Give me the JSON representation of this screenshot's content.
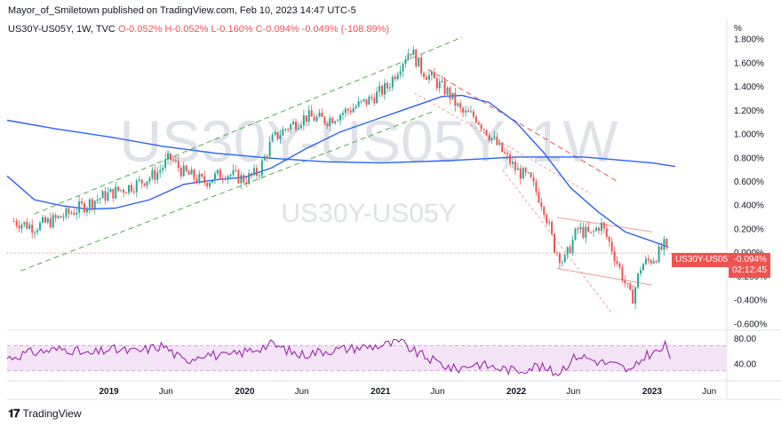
{
  "header": {
    "published_by": "Mayor_of_Smiletown published on TradingView.com, Feb 10, 2023 14:47 UTC-5"
  },
  "legend": {
    "symbol": "US30Y-US05Y, 1W, TVC",
    "open": "O-0.052%",
    "high": "H-0.052%",
    "low": "L-0.160%",
    "close": "C-0.094%",
    "change": "-0.049% (-108.89%)"
  },
  "watermark": {
    "big": "US30Y-US05Y, 1W",
    "small": "US30Y-US05Y"
  },
  "price_label": {
    "symbol": "US30Y-US05Y",
    "value": "-0.094%",
    "countdown": "02:12:45"
  },
  "footer": {
    "brand": "TradingView"
  },
  "colors": {
    "up": "#26a69a",
    "down": "#ef5350",
    "ma_short": "#2962ff",
    "ma_long": "#2962ff",
    "channel_green": "#4caf50",
    "channel_red": "#ef5350",
    "rsi": "#9c27b0",
    "rsi_band": "#f3e5f5"
  },
  "chart_data": {
    "type": "candlestick",
    "y_unit": "%",
    "y_axis_ticks": [
      "1.800%",
      "1.600%",
      "1.400%",
      "1.200%",
      "1.000%",
      "0.800%",
      "0.600%",
      "0.400%",
      "0.200%",
      "0.000%",
      "-0.200%",
      "-0.400%",
      "-0.600%"
    ],
    "x_axis_ticks": [
      "2019",
      "Jun",
      "2020",
      "Jun",
      "2021",
      "Jun",
      "2022",
      "Jun",
      "2023",
      "Jun"
    ],
    "ylim": [
      -0.65,
      1.85
    ],
    "xlim": [
      2018.25,
      2023.55
    ],
    "price_path": [
      [
        2018.3,
        0.27
      ],
      [
        2018.45,
        0.22
      ],
      [
        2018.6,
        0.28
      ],
      [
        2018.75,
        0.36
      ],
      [
        2018.9,
        0.45
      ],
      [
        2019.05,
        0.52
      ],
      [
        2019.2,
        0.58
      ],
      [
        2019.35,
        0.67
      ],
      [
        2019.45,
        0.8
      ],
      [
        2019.55,
        0.68
      ],
      [
        2019.7,
        0.6
      ],
      [
        2019.85,
        0.68
      ],
      [
        2020.0,
        0.62
      ],
      [
        2020.1,
        0.68
      ],
      [
        2020.2,
        0.95
      ],
      [
        2020.3,
        1.05
      ],
      [
        2020.45,
        1.15
      ],
      [
        2020.6,
        1.12
      ],
      [
        2020.75,
        1.2
      ],
      [
        2020.9,
        1.28
      ],
      [
        2021.05,
        1.4
      ],
      [
        2021.15,
        1.6
      ],
      [
        2021.22,
        1.72
      ],
      [
        2021.3,
        1.55
      ],
      [
        2021.4,
        1.45
      ],
      [
        2021.5,
        1.35
      ],
      [
        2021.6,
        1.18
      ],
      [
        2021.7,
        1.15
      ],
      [
        2021.8,
        1.0
      ],
      [
        2021.9,
        0.85
      ],
      [
        2022.0,
        0.7
      ],
      [
        2022.1,
        0.62
      ],
      [
        2022.2,
        0.4
      ],
      [
        2022.28,
        0.05
      ],
      [
        2022.35,
        -0.08
      ],
      [
        2022.45,
        0.2
      ],
      [
        2022.55,
        0.15
      ],
      [
        2022.62,
        0.25
      ],
      [
        2022.7,
        0.05
      ],
      [
        2022.8,
        -0.25
      ],
      [
        2022.85,
        -0.4
      ],
      [
        2022.92,
        -0.1
      ],
      [
        2023.0,
        -0.05
      ],
      [
        2023.05,
        0.0
      ],
      [
        2023.1,
        0.08
      ],
      [
        2023.12,
        -0.094
      ]
    ],
    "ma_short": [
      [
        2018.25,
        0.65
      ],
      [
        2018.45,
        0.45
      ],
      [
        2018.65,
        0.4
      ],
      [
        2018.85,
        0.37
      ],
      [
        2019.05,
        0.38
      ],
      [
        2019.3,
        0.45
      ],
      [
        2019.55,
        0.58
      ],
      [
        2019.8,
        0.62
      ],
      [
        2020.0,
        0.64
      ],
      [
        2020.2,
        0.72
      ],
      [
        2020.45,
        0.88
      ],
      [
        2020.7,
        1.02
      ],
      [
        2020.95,
        1.12
      ],
      [
        2021.2,
        1.22
      ],
      [
        2021.45,
        1.32
      ],
      [
        2021.6,
        1.33
      ],
      [
        2021.8,
        1.27
      ],
      [
        2022.0,
        1.1
      ],
      [
        2022.2,
        0.85
      ],
      [
        2022.4,
        0.55
      ],
      [
        2022.6,
        0.35
      ],
      [
        2022.8,
        0.18
      ],
      [
        2023.0,
        0.1
      ],
      [
        2023.12,
        0.05
      ]
    ],
    "ma_long": [
      [
        2018.25,
        1.12
      ],
      [
        2018.6,
        1.05
      ],
      [
        2019.0,
        0.98
      ],
      [
        2019.4,
        0.9
      ],
      [
        2019.8,
        0.84
      ],
      [
        2020.2,
        0.8
      ],
      [
        2020.6,
        0.77
      ],
      [
        2021.0,
        0.76
      ],
      [
        2021.5,
        0.78
      ],
      [
        2022.0,
        0.81
      ],
      [
        2022.5,
        0.81
      ],
      [
        2023.0,
        0.76
      ],
      [
        2023.17,
        0.73
      ]
    ],
    "green_channel": {
      "upper": [
        [
          2018.45,
          0.33
        ],
        [
          2021.6,
          1.82
        ]
      ],
      "lower": [
        [
          2018.35,
          -0.15
        ],
        [
          2021.4,
          1.2
        ]
      ]
    },
    "red_channel": {
      "upper": [
        [
          2021.35,
          1.55
        ],
        [
          2022.75,
          0.6
        ]
      ],
      "middle": [
        [
          2021.25,
          1.35
        ],
        [
          2022.55,
          0.5
        ]
      ],
      "lower": [
        [
          2021.9,
          0.7
        ],
        [
          2022.7,
          -0.5
        ]
      ]
    },
    "range_box": {
      "upper": [
        [
          2022.3,
          0.3
        ],
        [
          2023.0,
          0.18
        ]
      ],
      "lower": [
        [
          2022.3,
          -0.13
        ],
        [
          2023.0,
          -0.27
        ]
      ]
    },
    "rsi": {
      "ylim": [
        20,
        90
      ],
      "ticks": [
        "80.00",
        "40.00"
      ],
      "overbought": 70,
      "oversold": 30,
      "seed_points": [
        [
          2018.25,
          50
        ],
        [
          2018.4,
          58
        ],
        [
          2018.55,
          62
        ],
        [
          2018.7,
          65
        ],
        [
          2018.85,
          55
        ],
        [
          2019.0,
          64
        ],
        [
          2019.2,
          60
        ],
        [
          2019.4,
          70
        ],
        [
          2019.55,
          45
        ],
        [
          2019.7,
          58
        ],
        [
          2019.85,
          52
        ],
        [
          2020.0,
          60
        ],
        [
          2020.2,
          72
        ],
        [
          2020.4,
          55
        ],
        [
          2020.6,
          62
        ],
        [
          2020.8,
          66
        ],
        [
          2021.0,
          70
        ],
        [
          2021.15,
          75
        ],
        [
          2021.25,
          60
        ],
        [
          2021.4,
          45
        ],
        [
          2021.55,
          32
        ],
        [
          2021.7,
          42
        ],
        [
          2021.85,
          35
        ],
        [
          2022.0,
          30
        ],
        [
          2022.15,
          38
        ],
        [
          2022.3,
          26
        ],
        [
          2022.45,
          55
        ],
        [
          2022.6,
          45
        ],
        [
          2022.75,
          38
        ],
        [
          2022.85,
          28
        ],
        [
          2022.95,
          55
        ],
        [
          2023.05,
          60
        ],
        [
          2023.1,
          70
        ],
        [
          2023.15,
          45
        ]
      ]
    }
  }
}
